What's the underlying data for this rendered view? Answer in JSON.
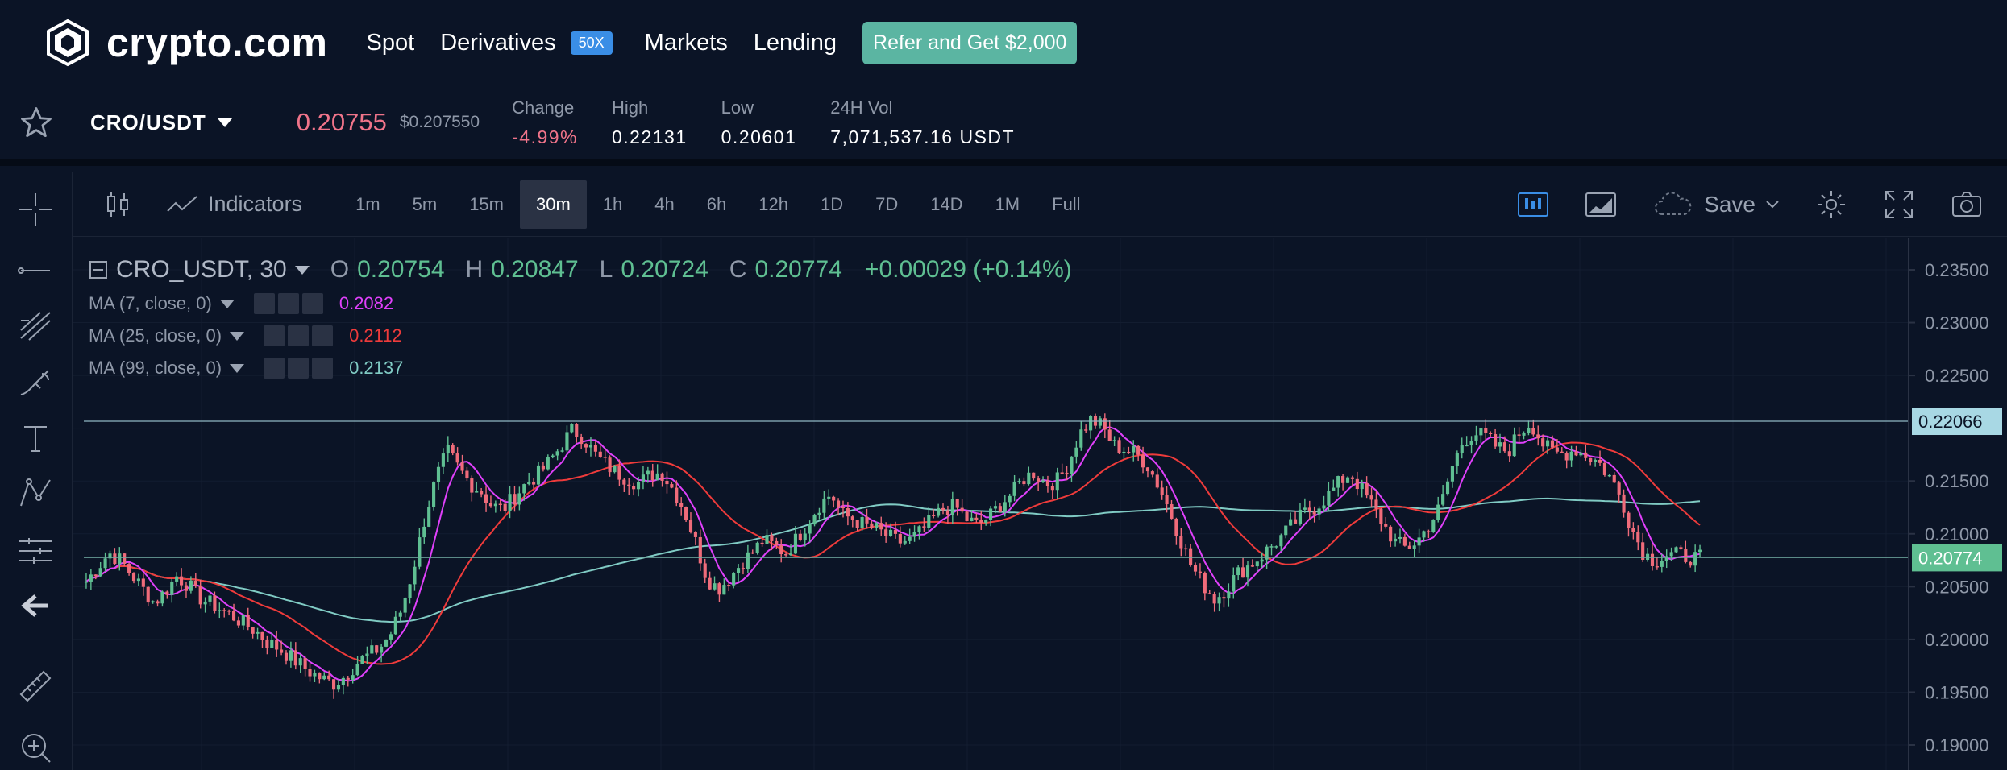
{
  "brand": {
    "name": "crypto.com"
  },
  "nav": {
    "links": [
      "Spot",
      "Derivatives",
      "Markets",
      "Lending"
    ],
    "derivatives_badge": "50X",
    "refer_button": "Refer and Get $2,000"
  },
  "ticker": {
    "pair": "CRO/USDT",
    "price": "0.20755",
    "price_usd": "$0.207550",
    "stats": [
      {
        "label": "Change",
        "value": "-4.99%",
        "negative": true
      },
      {
        "label": "High",
        "value": "0.22131"
      },
      {
        "label": "Low",
        "value": "0.20601"
      },
      {
        "label": "24H Vol",
        "value": "7,071,537.16 USDT"
      }
    ]
  },
  "toolbar": {
    "indicators_label": "Indicators",
    "timeframes": [
      "1m",
      "5m",
      "15m",
      "30m",
      "1h",
      "4h",
      "6h",
      "12h",
      "1D",
      "7D",
      "14D",
      "1M",
      "Full"
    ],
    "active_timeframe": "30m",
    "save_label": "Save"
  },
  "legend": {
    "symbol": "CRO_USDT, 30",
    "open": "0.20754",
    "high": "0.20847",
    "low": "0.20724",
    "close": "0.20774",
    "change": "+0.00029 (+0.14%)",
    "ma": [
      {
        "label": "MA (7, close, 0)",
        "value": "0.2082",
        "color": "#e040fb"
      },
      {
        "label": "MA (25, close, 0)",
        "value": "0.2112",
        "color": "#ef3b3b"
      },
      {
        "label": "MA (99, close, 0)",
        "value": "0.2137",
        "color": "#80cbc4"
      }
    ]
  },
  "price_axis": {
    "ticks": [
      "0.23500",
      "0.23000",
      "0.22500",
      "0.22066",
      "0.21500",
      "0.21000",
      "0.20774",
      "0.20500",
      "0.20000",
      "0.19500",
      "0.19000"
    ],
    "resistance_label": "0.22066",
    "last_price_label": "0.20774"
  },
  "colors": {
    "up": "#5fbf92",
    "down": "#ef6b7a",
    "bg": "#0b1426",
    "accent": "#5bb5a2"
  },
  "chart_data": {
    "type": "candlestick",
    "interval": "30",
    "ylim": [
      0.19,
      0.235
    ],
    "levels": [
      0.22066,
      0.20774
    ],
    "close_trace": [
      0.2055,
      0.2068,
      0.2082,
      0.2075,
      0.2062,
      0.2048,
      0.2035,
      0.2045,
      0.206,
      0.2052,
      0.204,
      0.2034,
      0.2028,
      0.2022,
      0.2015,
      0.2008,
      0.1998,
      0.1992,
      0.1984,
      0.1976,
      0.1968,
      0.1962,
      0.1958,
      0.1966,
      0.1978,
      0.1985,
      0.1992,
      0.2006,
      0.203,
      0.2068,
      0.2115,
      0.2152,
      0.2178,
      0.2162,
      0.2148,
      0.214,
      0.2126,
      0.2124,
      0.2136,
      0.2148,
      0.2156,
      0.2168,
      0.2182,
      0.2198,
      0.2192,
      0.2176,
      0.2166,
      0.2158,
      0.2152,
      0.2148,
      0.2156,
      0.2158,
      0.2142,
      0.2122,
      0.2092,
      0.2058,
      0.2048,
      0.2058,
      0.2072,
      0.2082,
      0.2094,
      0.2088,
      0.2082,
      0.2096,
      0.2112,
      0.2128,
      0.2138,
      0.2118,
      0.2114,
      0.2108,
      0.2104,
      0.2098,
      0.2092,
      0.2094,
      0.2102,
      0.2114,
      0.2124,
      0.2126,
      0.2114,
      0.2108,
      0.2116,
      0.2128,
      0.2138,
      0.2152,
      0.2158,
      0.2148,
      0.215,
      0.2166,
      0.2194,
      0.2208,
      0.2202,
      0.2184,
      0.218,
      0.2176,
      0.2166,
      0.2146,
      0.2122,
      0.2094,
      0.2068,
      0.2052,
      0.2038,
      0.2048,
      0.2062,
      0.207,
      0.2078,
      0.2088,
      0.2098,
      0.211,
      0.212,
      0.2126,
      0.2136,
      0.2148,
      0.2158,
      0.2142,
      0.2126,
      0.2108,
      0.2092,
      0.2086,
      0.2094,
      0.2108,
      0.2126,
      0.2162,
      0.2188,
      0.2196,
      0.2192,
      0.2182,
      0.2178,
      0.2196,
      0.2206,
      0.2186,
      0.2176,
      0.2176,
      0.218,
      0.2174,
      0.2168,
      0.2154,
      0.2134,
      0.2104,
      0.2082,
      0.2074,
      0.208,
      0.208,
      0.2078,
      0.2077
    ]
  }
}
